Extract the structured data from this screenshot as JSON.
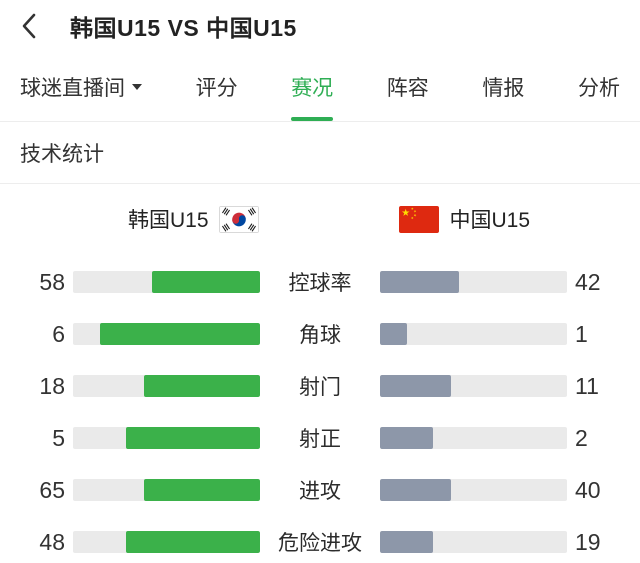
{
  "header": {
    "title": "韩国U15 VS 中国U15"
  },
  "tab_bar": {
    "dropdown_label": "球迷直播间",
    "tabs": [
      {
        "label": "评分",
        "active": false
      },
      {
        "label": "赛况",
        "active": true
      },
      {
        "label": "阵容",
        "active": false
      },
      {
        "label": "情报",
        "active": false
      },
      {
        "label": "分析",
        "active": false
      }
    ]
  },
  "section_title": "技术统计",
  "teams": {
    "home": {
      "name": "韩国U15",
      "flag_icon": "south-korea-flag"
    },
    "away": {
      "name": "中国U15",
      "flag_icon": "china-flag"
    }
  },
  "stats": [
    {
      "label": "控球率",
      "home": 58,
      "away": 42
    },
    {
      "label": "角球",
      "home": 6,
      "away": 1
    },
    {
      "label": "射门",
      "home": 18,
      "away": 11
    },
    {
      "label": "射正",
      "home": 5,
      "away": 2
    },
    {
      "label": "进攻",
      "home": 65,
      "away": 40
    },
    {
      "label": "危险进攻",
      "home": 48,
      "away": 19
    }
  ],
  "chart_data": {
    "type": "bar",
    "title": "技术统计",
    "categories": [
      "控球率",
      "角球",
      "射门",
      "射正",
      "进攻",
      "危险进攻"
    ],
    "series": [
      {
        "name": "韩国U15",
        "values": [
          58,
          6,
          18,
          5,
          65,
          48
        ]
      },
      {
        "name": "中国U15",
        "values": [
          42,
          1,
          11,
          2,
          40,
          19
        ]
      }
    ],
    "legend_position": "top",
    "grid": false
  },
  "colors": {
    "home_bar": "#3bb14a",
    "away_bar": "#8d97a9",
    "bar_track": "#eaeaea",
    "active_tab": "#2fae54",
    "text": "#2c2c2c"
  }
}
